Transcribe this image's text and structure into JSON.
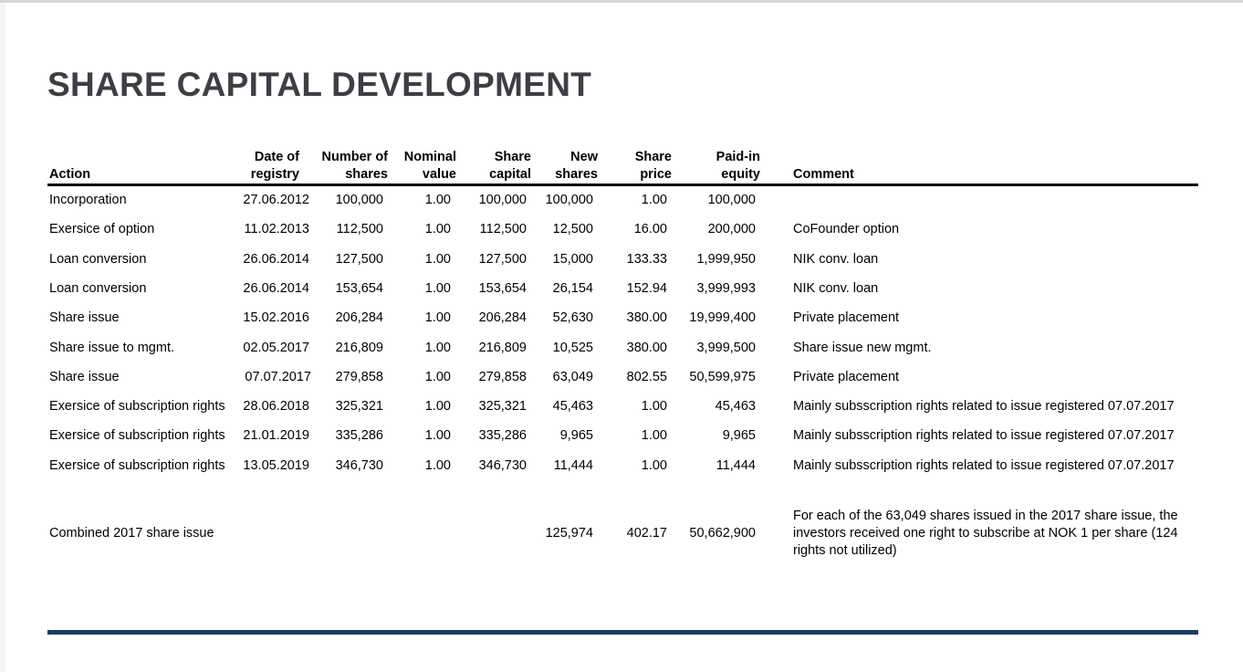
{
  "title": "SHARE CAPITAL DEVELOPMENT",
  "headers": {
    "action": "Action",
    "date": [
      "Date of",
      "registry"
    ],
    "number": [
      "Number of",
      "shares"
    ],
    "nominal": [
      "Nominal",
      "value"
    ],
    "capital": [
      "Share",
      "capital"
    ],
    "new": [
      "New",
      "shares"
    ],
    "price": [
      "Share",
      "price"
    ],
    "paid": [
      "Paid-in",
      "equity"
    ],
    "comment": "Comment"
  },
  "rows": [
    {
      "action": "Incorporation",
      "date": "27.06.2012",
      "number": "100,000",
      "nominal": "1.00",
      "capital": "100,000",
      "new": "100,000",
      "price": "1.00",
      "paid": "100,000",
      "comment": ""
    },
    {
      "action": "Exersice of option",
      "date": "11.02.2013",
      "number": "112,500",
      "nominal": "1.00",
      "capital": "112,500",
      "new": "12,500",
      "price": "16.00",
      "paid": "200,000",
      "comment": "CoFounder option"
    },
    {
      "action": "Loan conversion",
      "date": "26.06.2014",
      "number": "127,500",
      "nominal": "1.00",
      "capital": "127,500",
      "new": "15,000",
      "price": "133.33",
      "paid": "1,999,950",
      "comment": "NIK conv. loan"
    },
    {
      "action": "Loan conversion",
      "date": "26.06.2014",
      "number": "153,654",
      "nominal": "1.00",
      "capital": "153,654",
      "new": "26,154",
      "price": "152.94",
      "paid": "3,999,993",
      "comment": "NIK conv. loan"
    },
    {
      "action": "Share issue",
      "date": "15.02.2016",
      "number": "206,284",
      "nominal": "1.00",
      "capital": "206,284",
      "new": "52,630",
      "price": "380.00",
      "paid": "19,999,400",
      "comment": "Private placement"
    },
    {
      "action": "Share issue to mgmt.",
      "date": "02.05.2017",
      "number": "216,809",
      "nominal": "1.00",
      "capital": "216,809",
      "new": "10,525",
      "price": "380.00",
      "paid": "3,999,500",
      "comment": "Share issue new mgmt."
    },
    {
      "action": "Share issue",
      "date": "07.07.2017",
      "number": "279,858",
      "nominal": "1.00",
      "capital": "279,858",
      "new": "63,049",
      "price": "802.55",
      "paid": "50,599,975",
      "comment": "Private placement"
    },
    {
      "action": "Exersice of subscription rights",
      "date": "28.06.2018",
      "number": "325,321",
      "nominal": "1.00",
      "capital": "325,321",
      "new": "45,463",
      "price": "1.00",
      "paid": "45,463",
      "comment": "Mainly subsscription rights related to issue registered 07.07.2017"
    },
    {
      "action": "Exersice of subscription rights",
      "date": "21.01.2019",
      "number": "335,286",
      "nominal": "1.00",
      "capital": "335,286",
      "new": "9,965",
      "price": "1.00",
      "paid": "9,965",
      "comment": "Mainly subsscription rights related to issue registered 07.07.2017"
    },
    {
      "action": "Exersice of subscription rights",
      "date": "13.05.2019",
      "number": "346,730",
      "nominal": "1.00",
      "capital": "346,730",
      "new": "11,444",
      "price": "1.00",
      "paid": "11,444",
      "comment": "Mainly subsscription rights related to issue registered 07.07.2017"
    }
  ],
  "combined": {
    "action": "Combined 2017 share issue",
    "new": "125,974",
    "price": "402.17",
    "paid": "50,662,900",
    "comment": "For each of the 63,049 shares issued in the 2017 share issue, the investors received one right to subscribe at NOK 1 per share (124 rights not utilized)"
  },
  "colors": {
    "title": "#3d3f42",
    "footer_rule": "#1f3c5e"
  }
}
